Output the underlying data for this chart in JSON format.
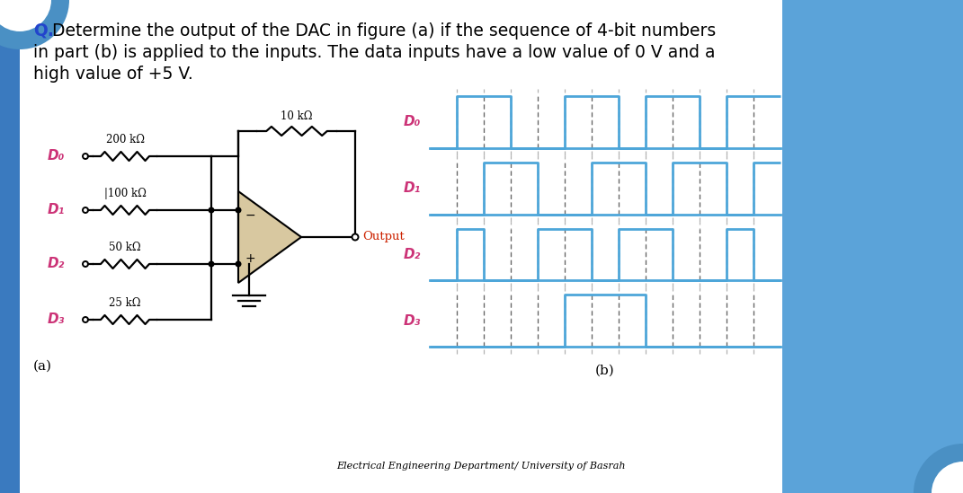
{
  "background_color": "#ffffff",
  "blue_color": "#5ba3d9",
  "label_color": "#cc3377",
  "output_color": "#cc2200",
  "fig_width": 10.71,
  "fig_height": 5.49,
  "footer_text": "Electrical Engineering Department/ University of Basrah",
  "D0_bits": [
    0,
    1,
    1,
    0,
    0,
    1,
    1,
    0,
    1,
    1,
    0,
    1,
    1,
    1
  ],
  "D1_bits": [
    0,
    0,
    1,
    1,
    0,
    0,
    1,
    1,
    0,
    1,
    1,
    0,
    1,
    1
  ],
  "D2_bits": [
    0,
    1,
    0,
    0,
    1,
    1,
    0,
    1,
    1,
    0,
    0,
    1,
    0,
    1
  ],
  "D3_bits": [
    0,
    0,
    0,
    0,
    0,
    1,
    1,
    1,
    0,
    0,
    0,
    0,
    0,
    0
  ],
  "n_steps": 13,
  "wf_line_color": "#4da6d9",
  "dashed_color": "#666666",
  "left_bar_color": "#3a7abf",
  "right_bg_color": "#5ba3d9",
  "title_q_color": "#2244cc",
  "title_text_color": "#000000"
}
